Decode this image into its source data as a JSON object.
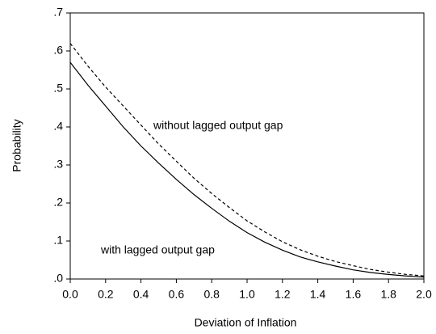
{
  "chart_data": {
    "type": "line",
    "x_label": "Deviation of Inflation",
    "y_label": "Probability",
    "x": [
      0,
      0.1,
      0.2,
      0.3,
      0.4,
      0.5,
      0.6,
      0.7,
      0.8,
      0.9,
      1.0,
      1.1,
      1.2,
      1.3,
      1.4,
      1.5,
      1.6,
      1.7,
      1.8,
      1.9,
      2.0
    ],
    "series": [
      {
        "name": "with lagged output gap",
        "color": "#000000",
        "line_style": "solid",
        "values": [
          0.57,
          0.51,
          0.455,
          0.4,
          0.35,
          0.305,
          0.262,
          0.222,
          0.186,
          0.152,
          0.122,
          0.097,
          0.076,
          0.058,
          0.045,
          0.034,
          0.024,
          0.017,
          0.012,
          0.008,
          0.005
        ]
      },
      {
        "name": "without lagged output gap",
        "color": "#000000",
        "line_style": "dashed",
        "values": [
          0.62,
          0.56,
          0.505,
          0.455,
          0.405,
          0.355,
          0.31,
          0.265,
          0.225,
          0.188,
          0.153,
          0.124,
          0.098,
          0.077,
          0.06,
          0.046,
          0.035,
          0.025,
          0.018,
          0.012,
          0.008
        ]
      }
    ],
    "xlim": [
      0,
      2.0
    ],
    "xticks": [
      {
        "value": 0,
        "label": "0.0"
      },
      {
        "value": 0.2,
        "label": "0.2"
      },
      {
        "value": 0.4,
        "label": "0.4"
      },
      {
        "value": 0.6,
        "label": "0.6"
      },
      {
        "value": 0.8,
        "label": "0.8"
      },
      {
        "value": 1.0,
        "label": "1.0"
      },
      {
        "value": 1.2,
        "label": "1.2"
      },
      {
        "value": 1.4,
        "label": "1.4"
      },
      {
        "value": 1.6,
        "label": "1.6"
      },
      {
        "value": 1.8,
        "label": "1.8"
      },
      {
        "value": 2.0,
        "label": "2.0"
      }
    ],
    "ylim": [
      0,
      0.7
    ],
    "yticks": [
      {
        "value": 0,
        "label": ".0"
      },
      {
        "value": 0.1,
        "label": ".1"
      },
      {
        "value": 0.2,
        "label": ".2"
      },
      {
        "value": 0.3,
        "label": ".3"
      },
      {
        "value": 0.4,
        "label": ".4"
      },
      {
        "value": 0.5,
        "label": ".5"
      },
      {
        "value": 0.6,
        "label": ".6"
      },
      {
        "value": 0.7,
        "label": ".7"
      }
    ],
    "grid": false
  }
}
